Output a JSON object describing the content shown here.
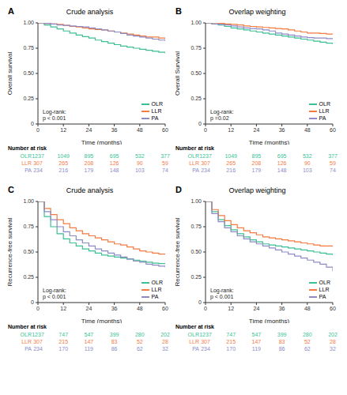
{
  "chart_data": [
    {
      "type": "line",
      "panel": "A",
      "title": "Crude analysis",
      "xlabel": "Time (months)",
      "ylabel": "Overall survival",
      "x": [
        0,
        3,
        6,
        9,
        12,
        15,
        18,
        21,
        24,
        27,
        30,
        33,
        36,
        39,
        42,
        45,
        48,
        51,
        54,
        57,
        60
      ],
      "xlim": [
        0,
        60
      ],
      "xticks": [
        0,
        12,
        24,
        36,
        48,
        60
      ],
      "ylim": [
        0,
        1
      ],
      "yticks": [
        0,
        0.25,
        {
          "value": 0.5,
          "label": "0.50"
        },
        0.75,
        {
          "value": 1,
          "label": "1.00"
        }
      ],
      "grid": false,
      "legend": "bottom-right",
      "line_style": "step",
      "annotation": [
        "Log-rank:",
        "p < 0.001"
      ],
      "at_risk_title": "Number at risk",
      "series": [
        {
          "name": "OLR",
          "color": "#3bbf94",
          "values": [
            1,
            0.98,
            0.96,
            0.94,
            0.92,
            0.9,
            0.88,
            0.865,
            0.85,
            0.83,
            0.815,
            0.8,
            0.785,
            0.77,
            0.76,
            0.75,
            0.74,
            0.73,
            0.72,
            0.71,
            0.7
          ],
          "at_risk": [
            1237,
            1049,
            895,
            695,
            532,
            377
          ]
        },
        {
          "name": "LLR",
          "color": "#f47a3f",
          "values": [
            1,
            0.995,
            0.99,
            0.985,
            0.975,
            0.965,
            0.96,
            0.95,
            0.94,
            0.935,
            0.93,
            0.92,
            0.91,
            0.9,
            0.89,
            0.88,
            0.87,
            0.86,
            0.86,
            0.85,
            0.84
          ],
          "at_risk": [
            307,
            265,
            208,
            126,
            90,
            59
          ]
        },
        {
          "name": "PA",
          "color": "#8d8ac6",
          "values": [
            1,
            0.995,
            0.99,
            0.98,
            0.975,
            0.97,
            0.965,
            0.96,
            0.95,
            0.94,
            0.93,
            0.92,
            0.91,
            0.895,
            0.88,
            0.87,
            0.86,
            0.85,
            0.84,
            0.83,
            0.82
          ],
          "at_risk": [
            234,
            216,
            179,
            148,
            103,
            74
          ]
        }
      ]
    },
    {
      "type": "line",
      "panel": "B",
      "title": "Overlap weighting",
      "xlabel": "Time (months)",
      "ylabel": "Overall Survival",
      "x": [
        0,
        3,
        6,
        9,
        12,
        15,
        18,
        21,
        24,
        27,
        30,
        33,
        36,
        39,
        42,
        45,
        48,
        51,
        54,
        57,
        60
      ],
      "xlim": [
        0,
        60
      ],
      "xticks": [
        0,
        12,
        24,
        36,
        48,
        60
      ],
      "ylim": [
        0,
        1
      ],
      "yticks": [
        0,
        0.25,
        {
          "value": 0.5,
          "label": "0.50"
        },
        0.75,
        {
          "value": 1,
          "label": "1.00"
        }
      ],
      "grid": false,
      "legend": "bottom-right",
      "line_style": "step",
      "annotation": [
        "Log-rank:",
        "p =0.02"
      ],
      "at_risk_title": "Number at risk",
      "series": [
        {
          "name": "OLR",
          "color": "#3bbf94",
          "values": [
            1,
            0.99,
            0.98,
            0.965,
            0.95,
            0.94,
            0.93,
            0.92,
            0.91,
            0.9,
            0.89,
            0.88,
            0.87,
            0.86,
            0.85,
            0.84,
            0.83,
            0.82,
            0.81,
            0.8,
            0.79
          ],
          "at_risk": [
            1237,
            1049,
            895,
            695,
            532,
            377
          ]
        },
        {
          "name": "LLR",
          "color": "#f47a3f",
          "values": [
            1,
            1,
            0.995,
            0.99,
            0.985,
            0.98,
            0.97,
            0.965,
            0.96,
            0.955,
            0.95,
            0.945,
            0.94,
            0.93,
            0.92,
            0.91,
            0.9,
            0.9,
            0.895,
            0.89,
            0.89
          ],
          "at_risk": [
            307,
            265,
            208,
            126,
            90,
            59
          ]
        },
        {
          "name": "PA",
          "color": "#8d8ac6",
          "values": [
            1,
            0.99,
            0.985,
            0.98,
            0.97,
            0.96,
            0.95,
            0.945,
            0.94,
            0.93,
            0.92,
            0.9,
            0.89,
            0.88,
            0.87,
            0.86,
            0.855,
            0.85,
            0.85,
            0.845,
            0.84
          ],
          "at_risk": [
            234,
            216,
            179,
            148,
            103,
            74
          ]
        }
      ]
    },
    {
      "type": "line",
      "panel": "C",
      "title": "Crude analysis",
      "xlabel": "Time (months)",
      "ylabel": "Recurrence-free survival",
      "x": [
        0,
        3,
        6,
        9,
        12,
        15,
        18,
        21,
        24,
        27,
        30,
        33,
        36,
        39,
        42,
        45,
        48,
        51,
        54,
        57,
        60
      ],
      "xlim": [
        0,
        60
      ],
      "xticks": [
        0,
        12,
        24,
        36,
        48,
        60
      ],
      "ylim": [
        0,
        1
      ],
      "yticks": [
        0,
        0.25,
        {
          "value": 0.5,
          "label": "0.50"
        },
        0.75,
        {
          "value": 1,
          "label": "1.00"
        }
      ],
      "grid": false,
      "legend": "bottom-right",
      "line_style": "step",
      "annotation": [
        "Log-rank:",
        "p < 0.001"
      ],
      "at_risk_title": "Number at risk",
      "series": [
        {
          "name": "OLR",
          "color": "#3bbf94",
          "values": [
            1,
            0.85,
            0.75,
            0.68,
            0.63,
            0.59,
            0.56,
            0.53,
            0.51,
            0.49,
            0.47,
            0.46,
            0.45,
            0.44,
            0.43,
            0.42,
            0.41,
            0.4,
            0.39,
            0.385,
            0.38
          ],
          "at_risk": [
            1237,
            747,
            547,
            399,
            280,
            202
          ]
        },
        {
          "name": "LLR",
          "color": "#f47a3f",
          "values": [
            1,
            0.93,
            0.87,
            0.82,
            0.78,
            0.74,
            0.71,
            0.68,
            0.66,
            0.64,
            0.62,
            0.6,
            0.58,
            0.57,
            0.55,
            0.53,
            0.51,
            0.5,
            0.49,
            0.48,
            0.48
          ],
          "at_risk": [
            307,
            215,
            147,
            83,
            52,
            28
          ]
        },
        {
          "name": "PA",
          "color": "#8d8ac6",
          "values": [
            1,
            0.9,
            0.82,
            0.75,
            0.7,
            0.66,
            0.62,
            0.59,
            0.56,
            0.53,
            0.51,
            0.49,
            0.47,
            0.45,
            0.43,
            0.41,
            0.4,
            0.38,
            0.37,
            0.36,
            0.35
          ],
          "at_risk": [
            234,
            170,
            119,
            86,
            62,
            32
          ]
        }
      ]
    },
    {
      "type": "line",
      "panel": "D",
      "title": "Overlap weighting",
      "xlabel": "Time (months)",
      "ylabel": "Recurrence-free survival",
      "x": [
        0,
        3,
        6,
        9,
        12,
        15,
        18,
        21,
        24,
        27,
        30,
        33,
        36,
        39,
        42,
        45,
        48,
        51,
        54,
        57,
        60
      ],
      "xlim": [
        0,
        60
      ],
      "xticks": [
        0,
        12,
        24,
        36,
        48,
        60
      ],
      "ylim": [
        0,
        1
      ],
      "yticks": [
        0,
        0.25,
        {
          "value": 0.5,
          "label": "0.50"
        },
        0.75,
        {
          "value": 1,
          "label": "1.00"
        }
      ],
      "grid": false,
      "legend": "bottom-right",
      "line_style": "step",
      "annotation": [
        "Log-rank:",
        "p < 0.001"
      ],
      "at_risk_title": "Number at risk",
      "series": [
        {
          "name": "OLR",
          "color": "#3bbf94",
          "values": [
            1,
            0.9,
            0.82,
            0.76,
            0.72,
            0.68,
            0.65,
            0.62,
            0.6,
            0.58,
            0.57,
            0.56,
            0.55,
            0.54,
            0.53,
            0.52,
            0.51,
            0.5,
            0.49,
            0.48,
            0.47
          ],
          "at_risk": [
            1237,
            747,
            547,
            399,
            280,
            202
          ]
        },
        {
          "name": "LLR",
          "color": "#f47a3f",
          "values": [
            1,
            0.92,
            0.86,
            0.81,
            0.77,
            0.74,
            0.71,
            0.69,
            0.67,
            0.65,
            0.64,
            0.63,
            0.62,
            0.61,
            0.6,
            0.59,
            0.58,
            0.57,
            0.56,
            0.56,
            0.55
          ],
          "at_risk": [
            307,
            215,
            147,
            83,
            52,
            28
          ]
        },
        {
          "name": "PA",
          "color": "#8d8ac6",
          "values": [
            1,
            0.88,
            0.8,
            0.74,
            0.7,
            0.66,
            0.63,
            0.6,
            0.58,
            0.56,
            0.54,
            0.52,
            0.5,
            0.48,
            0.46,
            0.44,
            0.42,
            0.4,
            0.38,
            0.35,
            0.31
          ],
          "at_risk": [
            234,
            170,
            119,
            86,
            62,
            32
          ]
        }
      ]
    }
  ]
}
